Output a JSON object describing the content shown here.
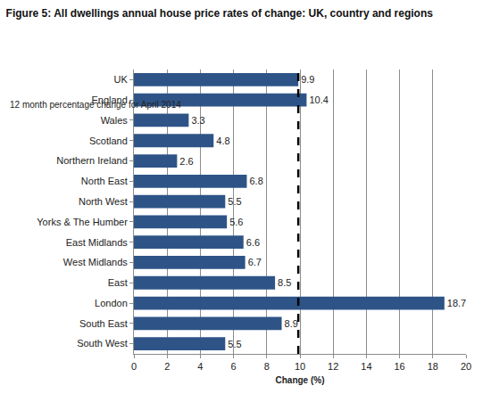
{
  "chart_data": {
    "type": "bar",
    "orientation": "horizontal",
    "title": "Figure 5: All dwellings annual house price rates of change: UK, country and regions",
    "subtitle": "12 month percentage change for April 2014",
    "x_label": "Change (%)",
    "categories": [
      "UK",
      "England",
      "Wales",
      "Scotland",
      "Northern Ireland",
      "North East",
      "North West",
      "Yorks & The Humber",
      "East Midlands",
      "West Midlands",
      "East",
      "London",
      "South East",
      "South West"
    ],
    "values": [
      9.9,
      10.4,
      3.3,
      4.8,
      2.6,
      6.8,
      5.5,
      5.6,
      6.6,
      6.7,
      8.5,
      18.7,
      8.9,
      5.5
    ],
    "color": "#2e5487",
    "xlim": [
      0,
      20
    ],
    "xticks": [
      0,
      2,
      4,
      6,
      8,
      10,
      12,
      14,
      16,
      18,
      20
    ],
    "grid": true,
    "data_labels": true,
    "reference_line": 9.9
  }
}
